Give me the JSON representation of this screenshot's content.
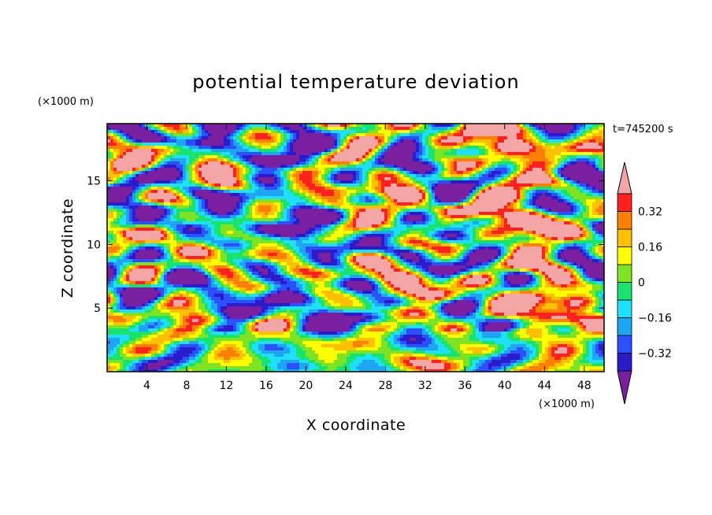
{
  "chart_data": {
    "type": "heatmap",
    "title": "potential temperature deviation",
    "xlabel": "X coordinate",
    "ylabel": "Z coordinate",
    "x_unit": "(×1000 m)",
    "y_unit": "(×1000 m)",
    "time_label": "t=745200 s",
    "xlim": [
      0,
      50
    ],
    "ylim": [
      0,
      19.5
    ],
    "x_ticks": [
      4,
      8,
      12,
      16,
      20,
      24,
      28,
      32,
      36,
      40,
      44,
      48
    ],
    "y_ticks": [
      5,
      10,
      15
    ],
    "colorbar": {
      "levels": [
        -0.4,
        -0.32,
        -0.24,
        -0.16,
        -0.08,
        0,
        0.08,
        0.16,
        0.24,
        0.32,
        0.4
      ],
      "tick_labels": [
        "0.32",
        "0.16",
        "0",
        "−0.16",
        "−0.32"
      ],
      "tick_values": [
        0.32,
        0.16,
        0,
        -0.16,
        -0.32
      ],
      "colors": [
        "#7a1fa0",
        "#2a1cc8",
        "#2a50ff",
        "#1ea6f5",
        "#20e0ff",
        "#19e36f",
        "#7de322",
        "#ffff00",
        "#ffc000",
        "#ff8000",
        "#ff2020",
        "#f4a6a6"
      ],
      "extend": "both"
    }
  }
}
